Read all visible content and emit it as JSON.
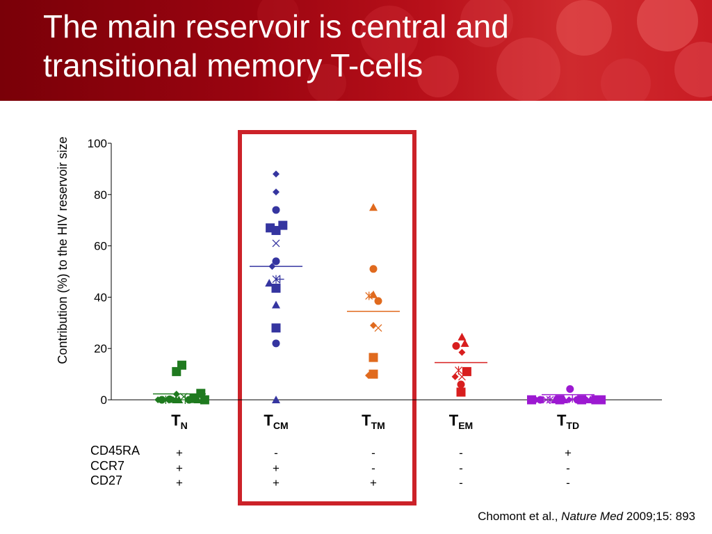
{
  "slide": {
    "title_line1": "The main reservoir is central and",
    "title_line2": "transitional memory T-cells",
    "citation": {
      "authors": "Chomont et al.,",
      "journal": "Nature Med",
      "ref": "2009;15: 893"
    }
  },
  "colors": {
    "header": "#a30a14",
    "highlight_box": "#cc2229",
    "TN": "#1f7a1f",
    "TCM": "#3535a0",
    "TTM": "#e06a1e",
    "TEM": "#d81e1e",
    "TTD": "#9c19d1"
  },
  "chart_data": {
    "type": "scatter",
    "ylabel": "Contribution (%) to the HIV reservoir size",
    "ylim": [
      0,
      100
    ],
    "yticks": [
      0,
      20,
      40,
      60,
      80,
      100
    ],
    "categories": [
      {
        "main": "T",
        "sub": "N"
      },
      {
        "main": "T",
        "sub": "CM"
      },
      {
        "main": "T",
        "sub": "TM"
      },
      {
        "main": "T",
        "sub": "EM"
      },
      {
        "main": "T",
        "sub": "TD"
      }
    ],
    "highlighted_categories": [
      "CM",
      "TM"
    ],
    "series": [
      {
        "color": "#1f7a1f",
        "median": 2.3,
        "points": [
          {
            "dx": -0.44,
            "y": 0,
            "m": "diamond"
          },
          {
            "dx": -0.36,
            "y": 0,
            "m": "circle"
          },
          {
            "dx": -0.28,
            "y": 0,
            "m": "star"
          },
          {
            "dx": -0.2,
            "y": 0.2,
            "m": "circle"
          },
          {
            "dx": -0.13,
            "y": 0,
            "m": "diamond"
          },
          {
            "dx": -0.07,
            "y": 0,
            "m": "triangle"
          },
          {
            "dx": -0.01,
            "y": 0,
            "m": "triangle"
          },
          {
            "dx": -0.06,
            "y": 2.2,
            "m": "diamond"
          },
          {
            "dx": -0.06,
            "y": 11,
            "m": "square"
          },
          {
            "dx": 0.05,
            "y": 13.5,
            "m": "square"
          },
          {
            "dx": 0.09,
            "y": 1.2,
            "m": "x"
          },
          {
            "dx": 0.12,
            "y": 0,
            "m": "plus"
          },
          {
            "dx": 0.2,
            "y": 0,
            "m": "circle"
          },
          {
            "dx": 0.3,
            "y": 0.5,
            "m": "square"
          },
          {
            "dx": 0.38,
            "y": 0,
            "m": "triangle"
          },
          {
            "dx": 0.44,
            "y": 2.5,
            "m": "square"
          },
          {
            "dx": 0.52,
            "y": 0,
            "m": "square"
          }
        ]
      },
      {
        "color": "#3535a0",
        "median": 52,
        "points": [
          {
            "dx": 0,
            "y": 88,
            "m": "diamond"
          },
          {
            "dx": 0,
            "y": 81,
            "m": "diamond"
          },
          {
            "dx": 0,
            "y": 74,
            "m": "circle"
          },
          {
            "dx": -0.12,
            "y": 67,
            "m": "square"
          },
          {
            "dx": 0,
            "y": 66,
            "m": "square"
          },
          {
            "dx": 0.14,
            "y": 68,
            "m": "square"
          },
          {
            "dx": 0,
            "y": 61,
            "m": "x"
          },
          {
            "dx": 0,
            "y": 54,
            "m": "circle"
          },
          {
            "dx": -0.08,
            "y": 52,
            "m": "diamond"
          },
          {
            "dx": -0.14,
            "y": 45.5,
            "m": "triangle"
          },
          {
            "dx": 0,
            "y": 47,
            "m": "star"
          },
          {
            "dx": 0.08,
            "y": 47,
            "m": "plus"
          },
          {
            "dx": 0,
            "y": 43.5,
            "m": "square"
          },
          {
            "dx": 0,
            "y": 37,
            "m": "triangle"
          },
          {
            "dx": 0,
            "y": 28,
            "m": "square"
          },
          {
            "dx": 0,
            "y": 22,
            "m": "circle"
          },
          {
            "dx": 0,
            "y": 0,
            "m": "triangle"
          }
        ]
      },
      {
        "color": "#e06a1e",
        "median": 34.5,
        "points": [
          {
            "dx": 0,
            "y": 75,
            "m": "triangle"
          },
          {
            "dx": 0,
            "y": 51,
            "m": "circle"
          },
          {
            "dx": -0.09,
            "y": 40.5,
            "m": "star"
          },
          {
            "dx": 0,
            "y": 41,
            "m": "triangle"
          },
          {
            "dx": 0.1,
            "y": 38.5,
            "m": "circle"
          },
          {
            "dx": 0,
            "y": 29,
            "m": "diamond"
          },
          {
            "dx": 0.1,
            "y": 28,
            "m": "x"
          },
          {
            "dx": 0,
            "y": 16.5,
            "m": "square"
          },
          {
            "dx": -0.1,
            "y": 9.5,
            "m": "diamond"
          },
          {
            "dx": 0,
            "y": 10,
            "m": "square"
          }
        ]
      },
      {
        "color": "#d81e1e",
        "median": 14.5,
        "points": [
          {
            "dx": 0.02,
            "y": 24.5,
            "m": "triangle"
          },
          {
            "dx": 0.08,
            "y": 22,
            "m": "triangle"
          },
          {
            "dx": -0.1,
            "y": 21,
            "m": "circle"
          },
          {
            "dx": 0.02,
            "y": 18.5,
            "m": "diamond"
          },
          {
            "dx": -0.12,
            "y": 9,
            "m": "diamond"
          },
          {
            "dx": -0.05,
            "y": 11.5,
            "m": "star"
          },
          {
            "dx": 0.02,
            "y": 9,
            "m": "x"
          },
          {
            "dx": 0.12,
            "y": 11,
            "m": "square"
          },
          {
            "dx": 0,
            "y": 6,
            "m": "circle"
          },
          {
            "dx": 0,
            "y": 3,
            "m": "square"
          }
        ]
      },
      {
        "color": "#9c19d1",
        "median": 2,
        "points": [
          {
            "dx": -0.75,
            "y": 0,
            "m": "square"
          },
          {
            "dx": -0.66,
            "y": 0,
            "m": "diamond"
          },
          {
            "dx": -0.57,
            "y": 0,
            "m": "circle"
          },
          {
            "dx": -0.45,
            "y": 0,
            "m": "x"
          },
          {
            "dx": -0.37,
            "y": 0,
            "m": "star"
          },
          {
            "dx": -0.27,
            "y": 0,
            "m": "triangle"
          },
          {
            "dx": -0.17,
            "y": 0,
            "m": "square"
          },
          {
            "dx": -0.08,
            "y": 0,
            "m": "triangle"
          },
          {
            "dx": 0.02,
            "y": 0,
            "m": "diamond"
          },
          {
            "dx": 0.04,
            "y": 4.2,
            "m": "circle"
          },
          {
            "dx": 0.09,
            "y": 0.5,
            "m": "plus"
          },
          {
            "dx": 0.19,
            "y": 0,
            "m": "circle"
          },
          {
            "dx": 0.28,
            "y": 0,
            "m": "square"
          },
          {
            "dx": 0.38,
            "y": 0,
            "m": "diamond"
          },
          {
            "dx": 0.46,
            "y": 0,
            "m": "triangle"
          },
          {
            "dx": 0.57,
            "y": 0,
            "m": "square"
          },
          {
            "dx": 0.68,
            "y": 0,
            "m": "square"
          }
        ]
      }
    ],
    "markers": [
      {
        "label": "CD45RA",
        "values": [
          "+",
          "-",
          "-",
          "-",
          "+"
        ]
      },
      {
        "label": "CCR7",
        "values": [
          "+",
          "+",
          "-",
          "-",
          "-"
        ]
      },
      {
        "label": "CD27",
        "values": [
          "+",
          "+",
          "+",
          "-",
          "-"
        ]
      }
    ]
  }
}
